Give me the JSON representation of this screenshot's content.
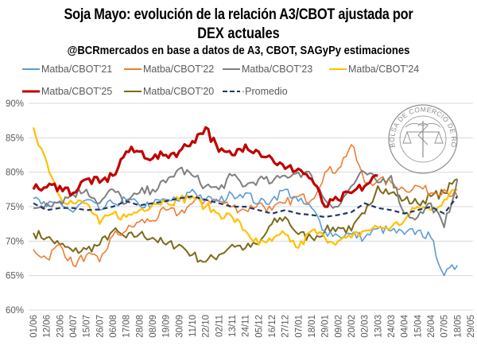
{
  "chart_data": {
    "type": "line",
    "title": "Soja Mayo: evolución de la relación A3/CBOT ajustada por",
    "title_line2": "DEX actuales",
    "subtitle": "@BCRmercados en base a datos de A3, CBOT, SAGyPy estimaciones",
    "xlabel": "",
    "ylabel": "",
    "ylim": [
      60,
      90
    ],
    "y_ticks": [
      "60%",
      "65%",
      "70%",
      "75%",
      "80%",
      "85%",
      "90%"
    ],
    "y_tick_values": [
      60,
      65,
      70,
      75,
      80,
      85,
      90
    ],
    "x": [
      "01/06",
      "12/06",
      "23/06",
      "04/07",
      "15/07",
      "26/07",
      "06/08",
      "17/08",
      "28/08",
      "08/09",
      "19/09",
      "30/09",
      "11/10",
      "22/10",
      "02/11",
      "13/11",
      "24/11",
      "05/12",
      "16/12",
      "27/12",
      "07/01",
      "18/01",
      "29/01",
      "09/02",
      "20/02",
      "02/03",
      "13/03",
      "24/03",
      "04/04",
      "15/04",
      "26/04",
      "07/05",
      "18/05",
      "29/05"
    ],
    "grid": true,
    "legend": "top",
    "series": [
      {
        "name": "Matba/CBOT'21",
        "color": "#5b9bd5",
        "width": 1.6,
        "dash": false,
        "values": [
          76.2,
          75.0,
          75.6,
          74.2,
          76.0,
          74.5,
          75.5,
          76.0,
          75.2,
          75.3,
          76.0,
          75.8,
          77.5,
          76.0,
          75.8,
          76.8,
          77.0,
          75.5,
          76.0,
          77.5,
          75.8,
          74.8,
          71.5,
          70.8,
          71.0,
          70.5,
          71.8,
          71.5,
          71.0,
          71.5,
          70.5,
          65.0,
          66.5,
          null
        ]
      },
      {
        "name": "Matba/CBOT'22",
        "color": "#ed7d31",
        "width": 1.6,
        "dash": false,
        "values": [
          68.8,
          67.5,
          69.5,
          66.5,
          68.0,
          67.0,
          70.8,
          71.5,
          72.8,
          73.0,
          74.5,
          74.0,
          75.5,
          76.0,
          75.8,
          75.0,
          74.5,
          75.5,
          74.5,
          75.5,
          76.5,
          76.0,
          80.0,
          80.5,
          84.0,
          78.5,
          78.8,
          78.5,
          77.5,
          78.0,
          77.0,
          77.5,
          76.5,
          null
        ]
      },
      {
        "name": "Matba/CBOT'23",
        "color": "#7f7f7f",
        "width": 2.0,
        "dash": false,
        "values": [
          74.8,
          75.5,
          75.8,
          76.8,
          77.5,
          75.5,
          77.5,
          75.5,
          77.0,
          77.5,
          78.5,
          80.5,
          79.5,
          78.0,
          77.5,
          79.5,
          78.0,
          79.0,
          78.5,
          79.5,
          80.0,
          79.5,
          76.0,
          75.0,
          78.0,
          80.0,
          78.5,
          79.5,
          74.0,
          73.5,
          75.5,
          72.0,
          79.0,
          null
        ]
      },
      {
        "name": "Matba/CBOT'24",
        "color": "#ffc000",
        "width": 2.2,
        "dash": false,
        "values": [
          86.5,
          81.5,
          76.5,
          75.5,
          75.5,
          72.5,
          74.0,
          73.5,
          74.5,
          75.5,
          75.8,
          76.0,
          76.5,
          75.0,
          74.0,
          73.5,
          71.5,
          69.5,
          70.0,
          71.0,
          69.0,
          71.5,
          70.5,
          70.0,
          70.5,
          71.5,
          72.0,
          72.0,
          73.0,
          75.0,
          74.5,
          76.0,
          77.5,
          null
        ]
      },
      {
        "name": "Matba/CBOT'25",
        "color": "#c00000",
        "width": 3.2,
        "dash": false,
        "values": [
          77.5,
          77.8,
          78.0,
          77.0,
          79.0,
          78.5,
          79.5,
          83.0,
          83.0,
          82.0,
          82.5,
          83.0,
          84.5,
          86.5,
          83.0,
          82.5,
          84.0,
          83.0,
          82.0,
          80.5,
          80.5,
          79.0,
          75.0,
          76.0,
          77.0,
          78.0,
          79.5,
          null,
          null,
          null,
          null,
          null,
          null,
          null
        ]
      },
      {
        "name": "Matba/CBOT'20",
        "color": "#7a6a1a",
        "width": 2.0,
        "dash": false,
        "values": [
          71.2,
          70.5,
          69.5,
          68.5,
          68.8,
          69.5,
          71.5,
          70.5,
          71.0,
          70.5,
          69.5,
          69.5,
          68.0,
          67.0,
          68.0,
          69.5,
          69.0,
          69.5,
          72.5,
          73.5,
          71.0,
          70.5,
          71.5,
          72.0,
          71.5,
          74.0,
          78.0,
          77.0,
          76.0,
          75.5,
          76.5,
          77.0,
          79.0,
          null
        ]
      },
      {
        "name": "Promedio",
        "color": "#1f3864",
        "width": 2.2,
        "dash": true,
        "values": [
          75.5,
          74.5,
          74.8,
          74.8,
          74.5,
          74.6,
          75.0,
          75.8,
          75.2,
          75.5,
          75.8,
          76.2,
          76.5,
          76.0,
          75.5,
          75.0,
          75.0,
          74.5,
          74.0,
          74.5,
          74.0,
          73.8,
          73.5,
          73.8,
          74.2,
          75.5,
          74.8,
          74.5,
          74.0,
          74.5,
          75.0,
          74.0,
          76.5,
          null
        ]
      }
    ]
  },
  "watermark": {
    "text": "BOLSA DE COMERCIO DE ROSARIO"
  }
}
